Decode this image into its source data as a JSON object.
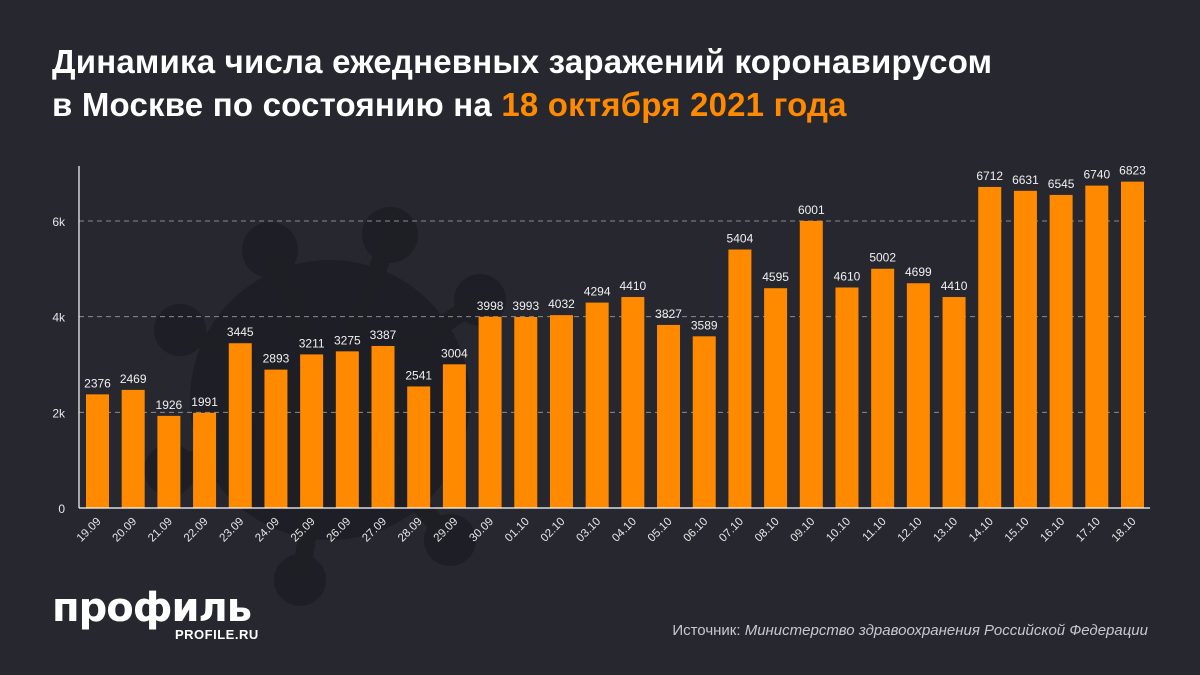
{
  "title": {
    "line1": "Динамика числа ежедневных заражений коронавирусом",
    "line2_prefix": "в Москве по состоянию на ",
    "line2_highlight": "18 октября 2021 года"
  },
  "colors": {
    "bar": "#ff8a00",
    "background": "#272730",
    "highlight": "#ff8a00"
  },
  "chart_data": {
    "type": "bar",
    "title": "",
    "xlabel": "",
    "ylabel": "",
    "ylim": [
      0,
      7000
    ],
    "yticks": [
      0,
      2000,
      4000,
      6000
    ],
    "ytick_labels": [
      "0",
      "2k",
      "4k",
      "6k"
    ],
    "grid": true,
    "categories": [
      "19.09",
      "20.09",
      "21.09",
      "22.09",
      "23.09",
      "24.09",
      "25.09",
      "26.09",
      "27.09",
      "28.09",
      "29.09",
      "30.09",
      "01.10",
      "02.10",
      "03.10",
      "04.10",
      "05.10",
      "06.10",
      "07.10",
      "08.10",
      "09.10",
      "10.10",
      "11.10",
      "12.10",
      "13.10",
      "14.10",
      "15.10",
      "16.10",
      "17.10",
      "18.10"
    ],
    "values": [
      2376,
      2469,
      1926,
      1991,
      3445,
      2893,
      3211,
      3275,
      3387,
      2541,
      3004,
      3998,
      3993,
      4032,
      4294,
      4410,
      3827,
      3589,
      5404,
      4595,
      6001,
      4610,
      5002,
      4699,
      4410,
      6712,
      6631,
      6545,
      6740,
      6823
    ]
  },
  "logo": {
    "name": "профиль",
    "site": "PROFILE.RU"
  },
  "source": {
    "label": "Источник: ",
    "name": "Министерство здравоохранения Российской Федерации"
  }
}
